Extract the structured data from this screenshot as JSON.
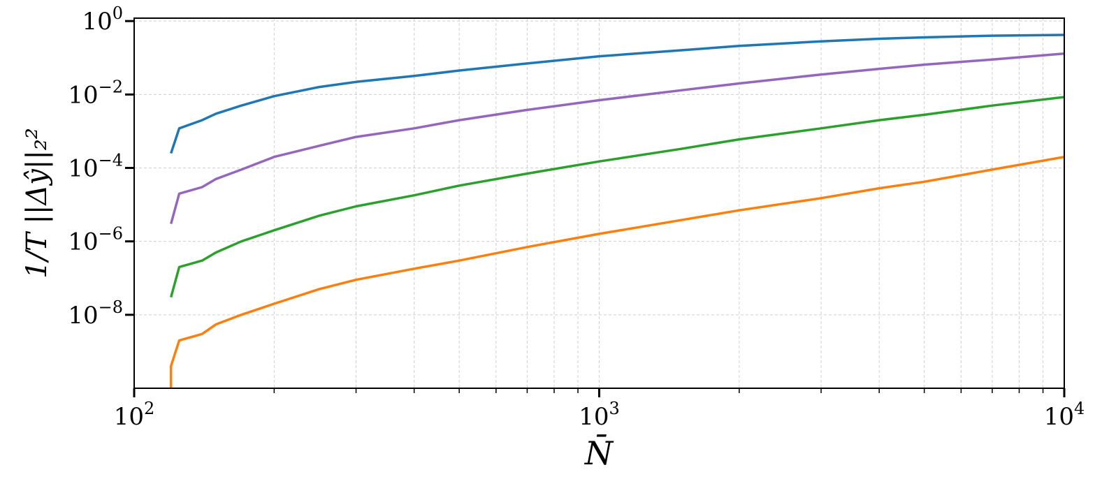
{
  "chart_data": {
    "type": "line",
    "xlabel": "N̄",
    "ylabel": "1/T ||Δŷ||₂²",
    "xscale": "log",
    "yscale": "log",
    "xlim": [
      100,
      10000
    ],
    "ylim": [
      1e-10,
      1.2
    ],
    "grid": true,
    "x_ticks": [
      {
        "value": 100,
        "base": "10",
        "exp": "2"
      },
      {
        "value": 1000,
        "base": "10",
        "exp": "3"
      },
      {
        "value": 10000,
        "base": "10",
        "exp": "4"
      }
    ],
    "y_ticks": [
      {
        "value": 1,
        "base": "10",
        "exp": "0"
      },
      {
        "value": 0.01,
        "base": "10",
        "exp": "−2"
      },
      {
        "value": 0.0001,
        "base": "10",
        "exp": "−4"
      },
      {
        "value": 1e-06,
        "base": "10",
        "exp": "−6"
      },
      {
        "value": 1e-08,
        "base": "10",
        "exp": "−8"
      }
    ],
    "series": [
      {
        "color": "#1f77b4",
        "x": [
          120,
          120,
          125,
          140,
          150,
          170,
          200,
          250,
          300,
          400,
          500,
          700,
          1000,
          1500,
          2000,
          3000,
          4000,
          5000,
          7000,
          10000
        ],
        "y": [
          0.00025,
          0.00025,
          0.0012,
          0.002,
          0.003,
          0.005,
          0.009,
          0.016,
          0.022,
          0.032,
          0.045,
          0.07,
          0.11,
          0.16,
          0.21,
          0.28,
          0.33,
          0.36,
          0.4,
          0.42
        ]
      },
      {
        "color": "#9467bd",
        "x": [
          120,
          120,
          125,
          140,
          150,
          170,
          200,
          250,
          300,
          400,
          500,
          700,
          1000,
          1500,
          2000,
          3000,
          4000,
          5000,
          7000,
          10000
        ],
        "y": [
          3e-06,
          3e-06,
          2e-05,
          3e-05,
          5e-05,
          9e-05,
          0.0002,
          0.0004,
          0.0007,
          0.0012,
          0.002,
          0.0038,
          0.007,
          0.013,
          0.02,
          0.035,
          0.05,
          0.065,
          0.09,
          0.13
        ]
      },
      {
        "color": "#2ca02c",
        "x": [
          120,
          120,
          125,
          140,
          150,
          170,
          200,
          250,
          300,
          400,
          500,
          700,
          1000,
          1500,
          2000,
          3000,
          4000,
          5000,
          7000,
          10000
        ],
        "y": [
          3e-08,
          3e-08,
          2e-07,
          3e-07,
          5e-07,
          1e-06,
          2e-06,
          5e-06,
          9e-06,
          1.8e-05,
          3.3e-05,
          7e-05,
          0.00015,
          0.00033,
          0.0006,
          0.0012,
          0.002,
          0.0028,
          0.005,
          0.0085
        ]
      },
      {
        "color": "#ff7f0e",
        "x": [
          120,
          120,
          125,
          140,
          150,
          170,
          200,
          250,
          300,
          400,
          500,
          700,
          1000,
          1500,
          2000,
          3000,
          4000,
          5000,
          7000,
          10000
        ],
        "y": [
          1e-10,
          4e-10,
          2e-09,
          3e-09,
          5.5e-09,
          1e-08,
          2e-08,
          5e-08,
          9e-08,
          1.8e-07,
          3e-07,
          7e-07,
          1.6e-06,
          3.8e-06,
          7e-06,
          1.5e-05,
          2.8e-05,
          4.2e-05,
          9e-05,
          0.0002
        ]
      }
    ]
  }
}
